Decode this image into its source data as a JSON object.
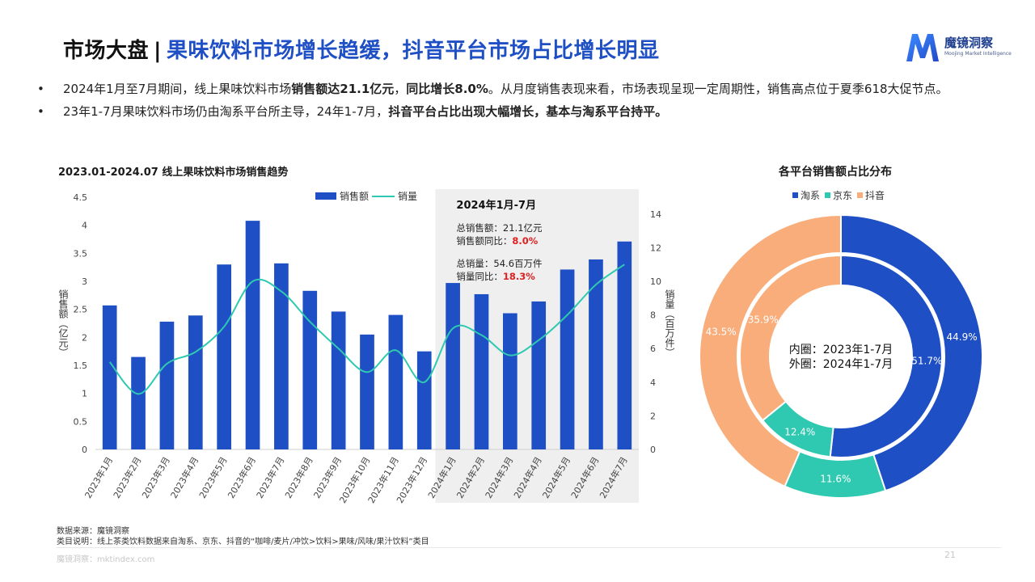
{
  "header": {
    "title_prefix": "市场大盘",
    "title_separator": "|",
    "title_main": "果味饮料市场增长趋缓，抖音平台市场占比增长明显",
    "logo_text": "魔镜洞察",
    "logo_subtext": "Moojing Market Intelligence"
  },
  "bullets": [
    {
      "symbol": "•",
      "parts": [
        {
          "text": "2024年1月至7月期间，线上果味饮料市场",
          "bold": false
        },
        {
          "text": "销售额达21.1亿元",
          "bold": true
        },
        {
          "text": "，",
          "bold": false
        },
        {
          "text": "同比增长8.0%",
          "bold": true
        },
        {
          "text": "。从月度销售表现来看，市场表现呈现一定周期性，销售高点位于夏季618大促节点。",
          "bold": false
        }
      ]
    },
    {
      "symbol": "•",
      "parts": [
        {
          "text": "23年1-7月果味饮料市场仍由淘系平台所主导，24年1-7月，",
          "bold": false
        },
        {
          "text": "抖音平台占比出现大幅增长，基本与淘系平台持平。",
          "bold": true
        }
      ]
    }
  ],
  "colors": {
    "bar": "#1f4fc5",
    "line": "#2ec9b0",
    "taoxi": "#1f4fc5",
    "jingdong": "#2ec9b0",
    "douyin": "#f8ad7a",
    "highlight_bg": "#efefef",
    "highlight_red": "#e02020",
    "title_blue": "#1f4fc5"
  },
  "chart_data": [
    {
      "type": "bar",
      "title": "2023.01-2024.07 线上果味饮料市场销售趋势",
      "categories": [
        "2023年1月",
        "2023年2月",
        "2023年3月",
        "2023年4月",
        "2023年5月",
        "2023年6月",
        "2023年7月",
        "2023年8月",
        "2023年9月",
        "2023年10月",
        "2023年11月",
        "2023年12月",
        "2024年1月",
        "2024年2月",
        "2024年3月",
        "2024年4月",
        "2024年5月",
        "2024年6月",
        "2024年7月"
      ],
      "series": [
        {
          "name": "销售额",
          "type": "bar",
          "axis": "left",
          "values": [
            2.57,
            1.65,
            2.28,
            2.39,
            3.3,
            4.08,
            3.32,
            2.83,
            2.46,
            2.05,
            2.4,
            1.75,
            2.97,
            2.77,
            2.43,
            2.64,
            3.21,
            3.39,
            3.71
          ]
        },
        {
          "name": "销量",
          "type": "line",
          "axis": "right",
          "values": [
            5.2,
            3.3,
            5.1,
            5.8,
            7.3,
            10.0,
            9.4,
            7.6,
            6.0,
            4.6,
            5.9,
            4.0,
            7.2,
            6.8,
            5.6,
            6.5,
            8.0,
            9.8,
            11.0
          ]
        }
      ],
      "ylabel": "销售额（亿元）",
      "y2label": "销量（百万件）",
      "ylim": [
        0,
        4.5
      ],
      "yticks": [
        "0",
        "0.5",
        "1",
        "1.5",
        "2",
        "2.5",
        "3",
        "3.5",
        "4",
        "4.5"
      ],
      "y2lim": [
        0,
        15
      ],
      "y2ticks": [
        "0",
        "2",
        "4",
        "6",
        "8",
        "10",
        "12",
        "14"
      ],
      "legend_position": "top",
      "grid": false,
      "highlight": {
        "from_category": "2024年1月",
        "to_category": "2024年7月",
        "title": "2024年1月-7月",
        "lines": [
          {
            "label": "总销售额：",
            "value": "21.1亿元",
            "red": false
          },
          {
            "label": "销售额同比：",
            "value": "8.0%",
            "red": true
          },
          {
            "label": "总销量：",
            "value": "54.6百万件",
            "red": false
          },
          {
            "label": "销量同比：",
            "value": "18.3%",
            "red": true
          }
        ]
      }
    },
    {
      "type": "pie",
      "title": "各平台销售额占比分布",
      "variant": "nested-donut",
      "legend_position": "top",
      "categories": [
        "淘系",
        "京东",
        "抖音"
      ],
      "series": [
        {
          "name": "2023年1-7月",
          "ring": "inner",
          "values": [
            51.7,
            12.4,
            35.9
          ],
          "labels": [
            "51.7%",
            "12.4%",
            "35.9%"
          ]
        },
        {
          "name": "2024年1-7月",
          "ring": "outer",
          "values": [
            44.9,
            11.6,
            43.5
          ],
          "labels": [
            "44.9%",
            "11.6%",
            "43.5%"
          ]
        }
      ],
      "center_lines": [
        "内圈：2023年1-7月",
        "外圈：2024年1-7月"
      ]
    }
  ],
  "footer": {
    "source": "数据来源：魔镜洞察",
    "note": "类目说明：线上茶类饮料数据来自淘系、京东、抖音的“咖啡/麦片/冲饮>饮料>果味/风味/果汁饮料”类目",
    "site": "魔镜洞察：mktindex.com",
    "page": "21"
  }
}
